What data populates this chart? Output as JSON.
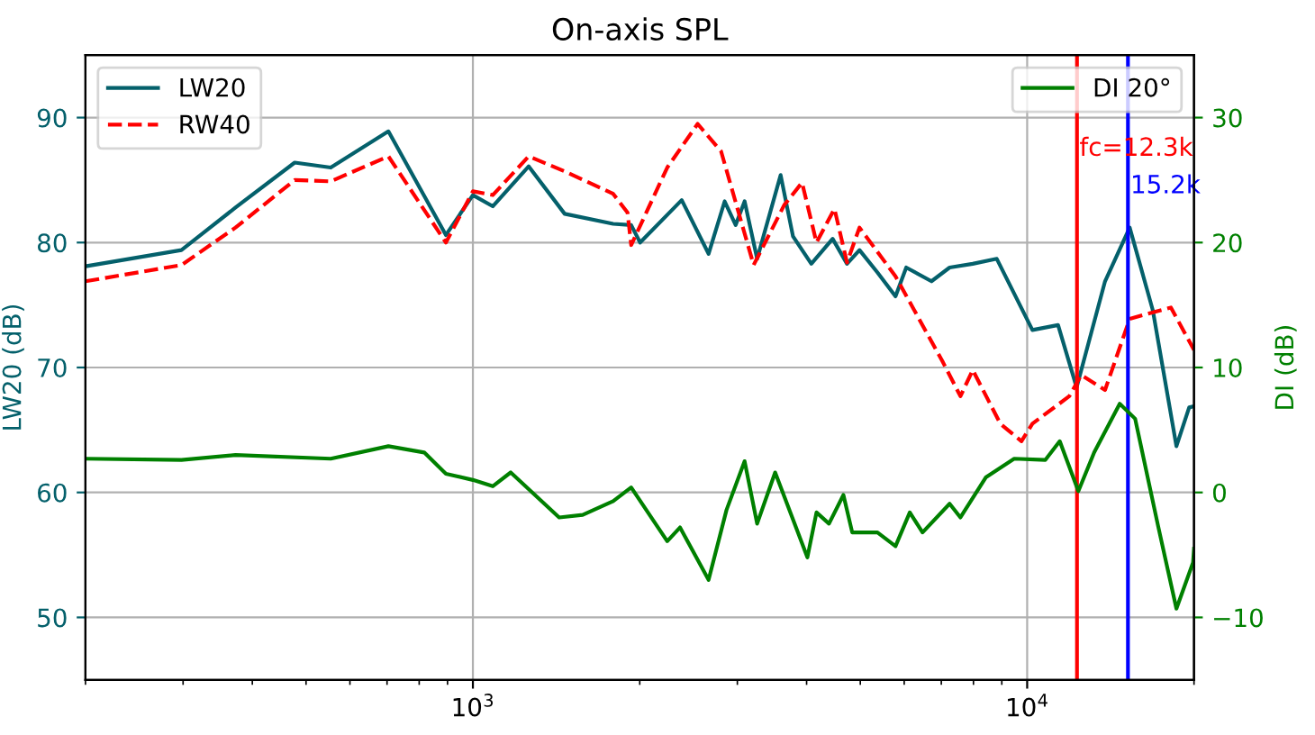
{
  "chart_data": {
    "type": "line",
    "title": "On-axis SPL",
    "ylabel": "LW20 (dB)",
    "y2label": "DI (dB)",
    "log": "x",
    "grid": true,
    "legend": "top left",
    "xlim": [
      200,
      20000
    ],
    "xticks": [
      {
        "value": 1000,
        "label": "10$^{3}$"
      },
      {
        "value": 10000,
        "label": "10$^{4}$"
      }
    ],
    "ylim": [
      45,
      95
    ],
    "yticks": [
      50,
      60,
      70,
      80,
      90
    ],
    "y2lim": [
      -15,
      35
    ],
    "y2ticks": [
      {
        "value": -10,
        "label": "−10"
      },
      0,
      10,
      20,
      30
    ],
    "ref_lines": [
      {
        "axis": "x",
        "value": 12300,
        "label": "fc=12.3k",
        "color": "#ff0000"
      },
      {
        "axis": "x",
        "value": 15200,
        "label": "15.2k",
        "color": "#0000ff"
      }
    ],
    "series": [
      {
        "name": "LW20",
        "color": "#04606b",
        "line_style": "solid",
        "x": [
          200,
          298,
          373,
          477,
          554,
          704,
          894,
          1000,
          1086,
          1261,
          1464,
          1791,
          1930,
          2003,
          2381,
          2662,
          2846,
          2979,
          3092,
          3257,
          3591,
          3780,
          4079,
          4457,
          4731,
          4983,
          5369,
          5787,
          6051,
          6720,
          7246,
          7976,
          8814,
          10220,
          11370,
          12280,
          13820,
          15310,
          16850,
          18590,
          19600,
          20000
        ],
        "values": [
          78.1,
          79.4,
          82.8,
          86.4,
          86.0,
          88.9,
          80.6,
          83.8,
          82.9,
          86.1,
          82.3,
          81.5,
          81.4,
          80.0,
          83.4,
          79.1,
          83.3,
          81.4,
          83.3,
          78.7,
          85.4,
          80.5,
          78.3,
          80.3,
          78.3,
          79.4,
          77.6,
          75.7,
          78.0,
          76.9,
          78.0,
          78.3,
          78.7,
          73.0,
          73.4,
          68.4,
          76.9,
          81.2,
          74.6,
          63.7,
          66.8,
          66.9
        ]
      },
      {
        "name": "RW40",
        "color": "#ff0000",
        "line_style": "dashed",
        "x": [
          200,
          298,
          373,
          477,
          554,
          704,
          894,
          1000,
          1086,
          1261,
          1464,
          1791,
          1901,
          1930,
          2242,
          2544,
          2804,
          3210,
          3645,
          3925,
          4168,
          4491,
          4731,
          4983,
          5787,
          6380,
          7032,
          7579,
          7976,
          8946,
          9766,
          10220,
          11910,
          12520,
          13820,
          15310,
          18170,
          20000
        ],
        "values": [
          76.9,
          78.2,
          81.2,
          85.0,
          84.9,
          86.9,
          80.0,
          84.1,
          83.8,
          86.9,
          85.7,
          83.9,
          82.4,
          79.8,
          86.0,
          89.5,
          87.3,
          78.2,
          83.0,
          84.8,
          80.0,
          82.7,
          78.4,
          81.2,
          77.3,
          73.9,
          70.5,
          67.7,
          69.8,
          65.5,
          64.1,
          65.5,
          67.7,
          69.4,
          68.2,
          73.9,
          74.8,
          71.4
        ]
      },
      {
        "name": "DI 20°",
        "color": "#008000",
        "line_style": "solid",
        "axis": "y2",
        "x": [
          200,
          298,
          373,
          554,
          704,
          817,
          894,
          1000,
          1086,
          1170,
          1431,
          1578,
          1791,
          1930,
          2242,
          2364,
          2662,
          2868,
          3092,
          3257,
          3510,
          4013,
          4168,
          4390,
          4661,
          4835,
          5369,
          5787,
          6141,
          6475,
          7246,
          7579,
          8420,
          9475,
          10780,
          11450,
          12370,
          13210,
          14690,
          15660,
          17230,
          18590,
          19920,
          20000
        ],
        "values": [
          2.7,
          2.6,
          3.0,
          2.7,
          3.7,
          3.2,
          1.5,
          1.0,
          0.5,
          1.6,
          -2.0,
          -1.8,
          -0.7,
          0.4,
          -3.9,
          -2.8,
          -7.0,
          -1.4,
          2.5,
          -2.5,
          1.6,
          -5.2,
          -1.6,
          -2.5,
          -0.2,
          -3.2,
          -3.2,
          -4.3,
          -1.6,
          -3.2,
          -0.9,
          -2.0,
          1.2,
          2.7,
          2.6,
          4.1,
          0.1,
          3.2,
          7.1,
          5.9,
          -2.7,
          -9.3,
          -5.6,
          -4.5
        ]
      }
    ]
  }
}
